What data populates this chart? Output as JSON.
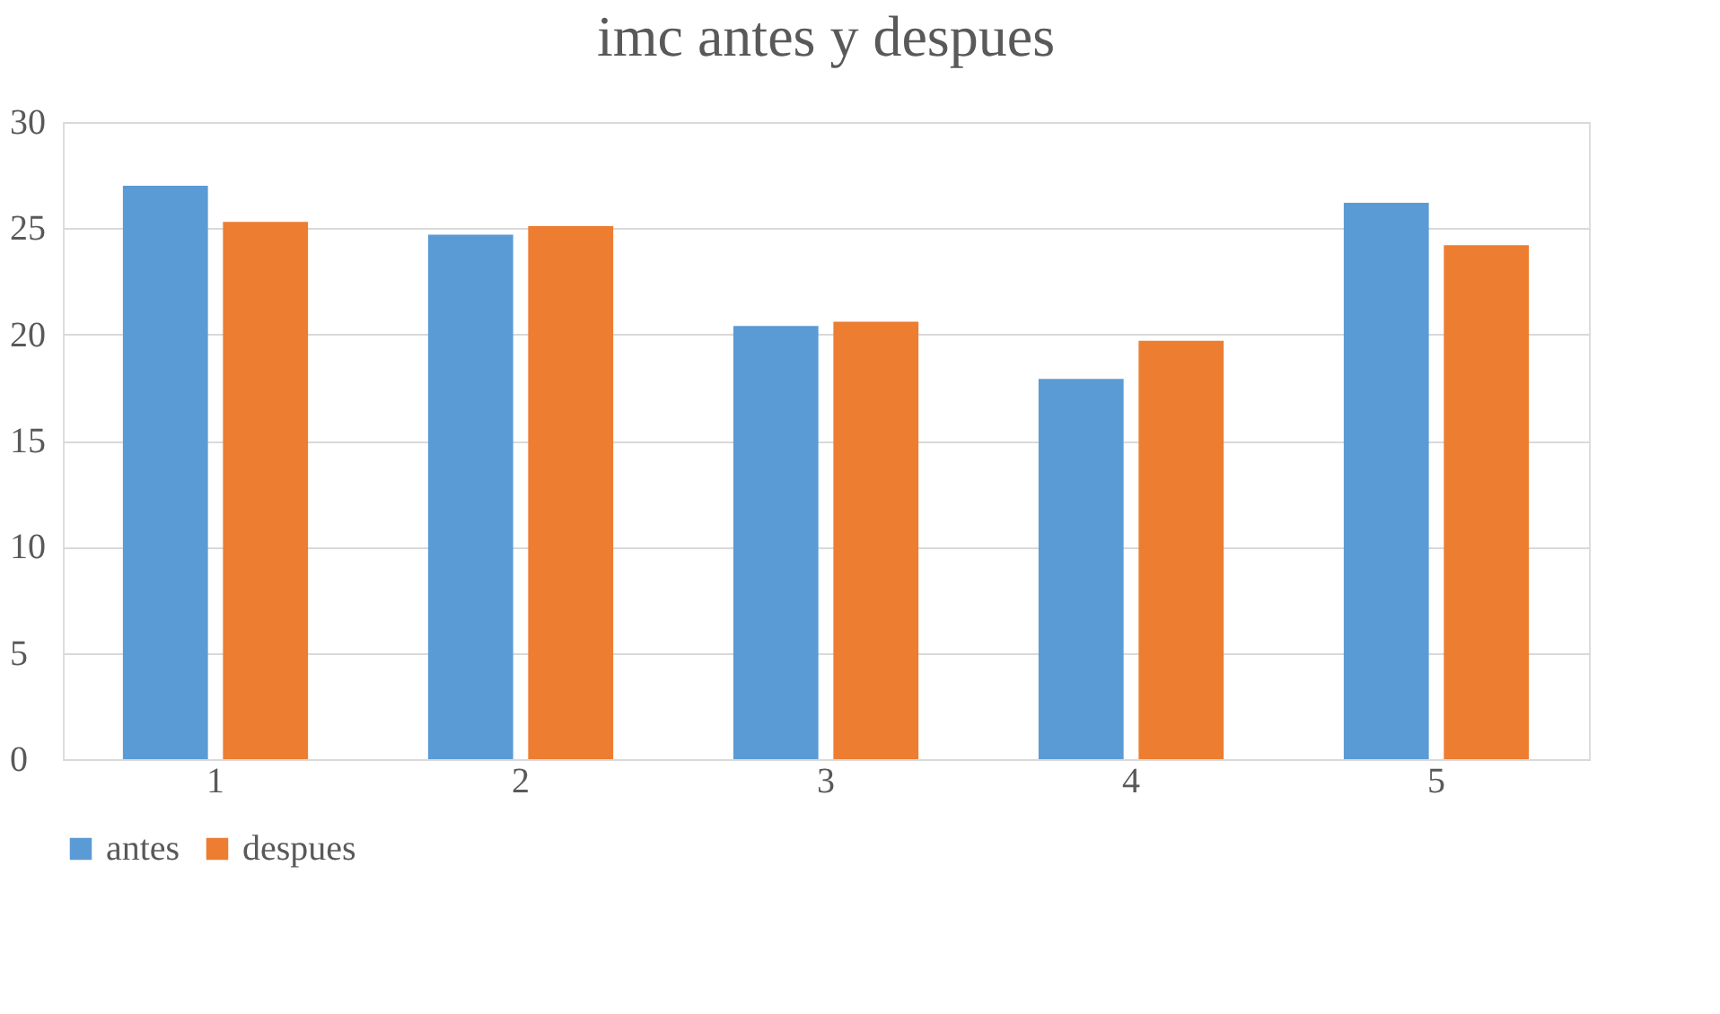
{
  "chart_data": {
    "type": "bar",
    "title": "imc antes y despues",
    "categories": [
      "1",
      "2",
      "3",
      "4",
      "5"
    ],
    "series": [
      {
        "name": "antes",
        "color": "#5b9bd5",
        "values": [
          27.0,
          24.7,
          20.4,
          17.9,
          26.2
        ]
      },
      {
        "name": "despues",
        "color": "#ed7d31",
        "values": [
          25.3,
          25.1,
          20.6,
          19.7,
          24.2
        ]
      }
    ],
    "ylim": [
      0,
      30
    ],
    "yticks": [
      0,
      5,
      10,
      15,
      20,
      25,
      30
    ],
    "grid": "y",
    "legend": "bottom"
  }
}
